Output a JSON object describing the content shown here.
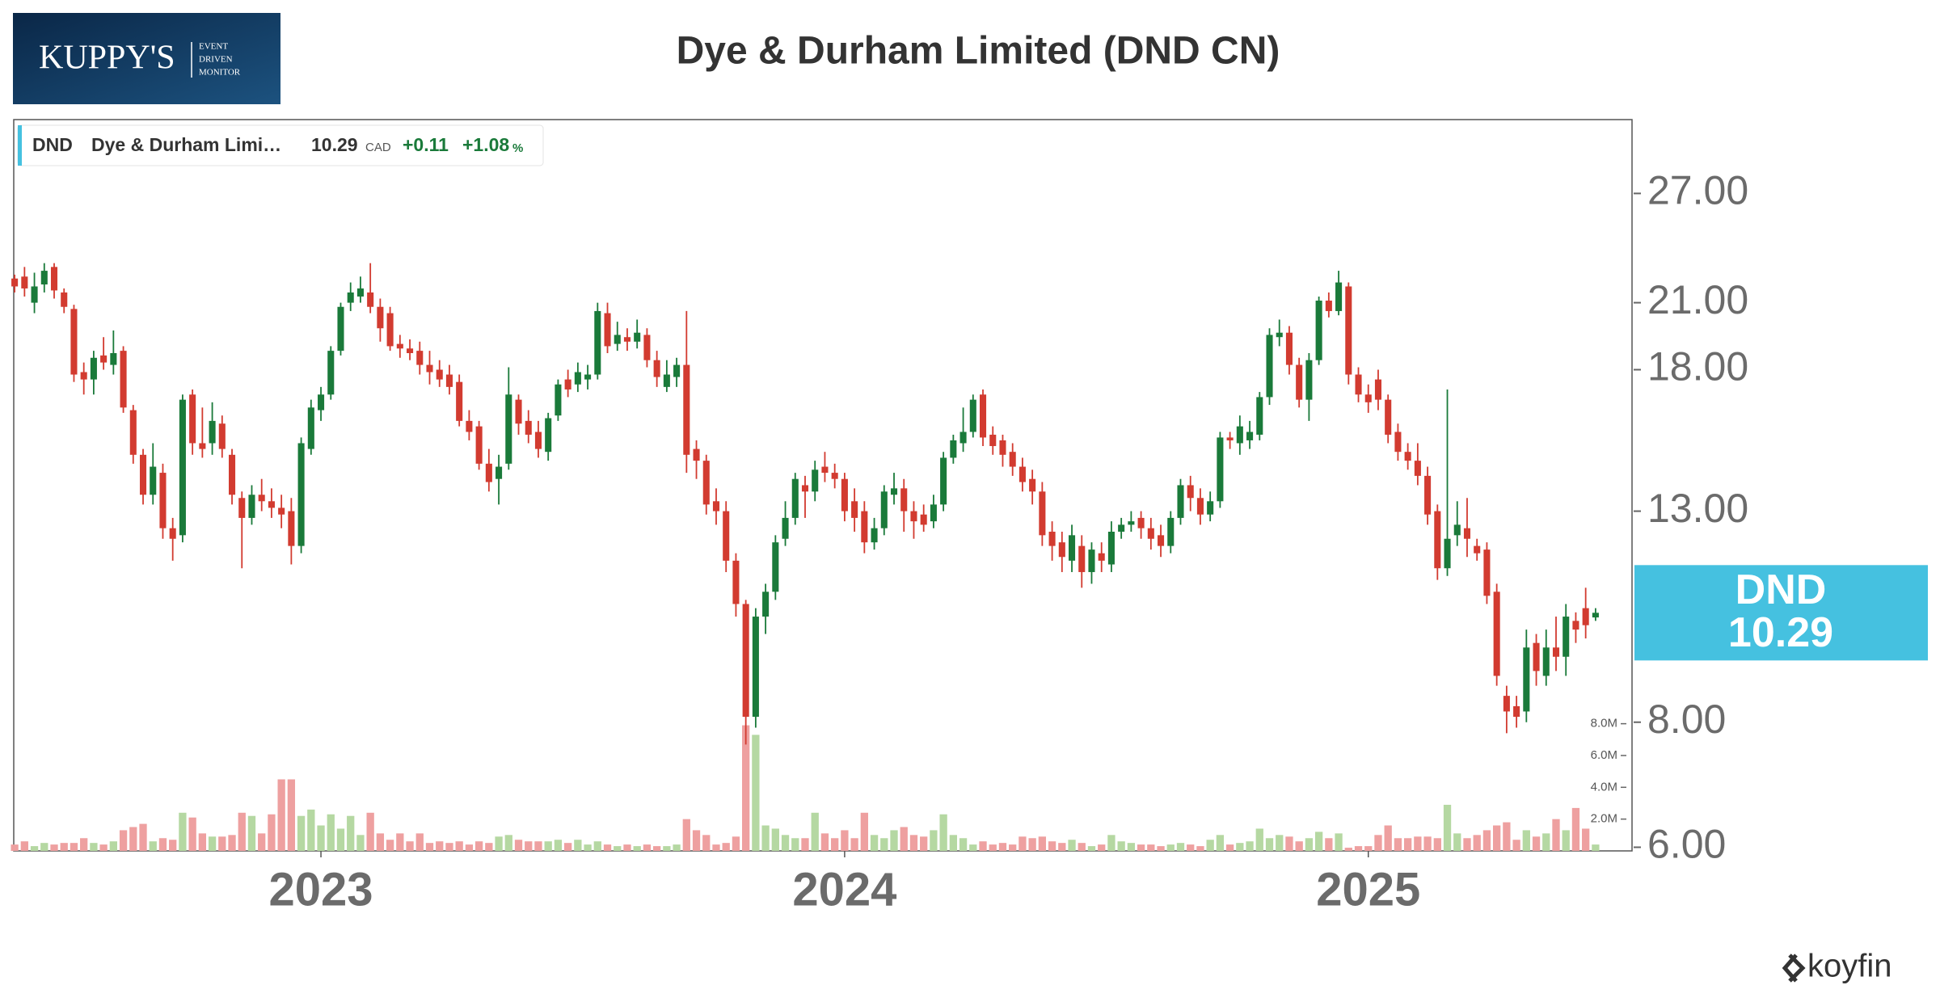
{
  "logo": {
    "name": "KUPPY'S",
    "tagline": [
      "EVENT",
      "DRIVEN",
      "MONITOR"
    ]
  },
  "footer": {
    "brand": "koyfin"
  },
  "chart_data": {
    "type": "candlestick",
    "title": "Dye & Durham Limited (DND CN)",
    "legend": {
      "ticker": "DND",
      "name": "Dye & Durham Limi…",
      "currency": "CAD",
      "change": "+0.11",
      "change_pct": "+1.08",
      "pct_sign": "%"
    },
    "last_price": 10.29,
    "log_scale": true,
    "up_color": "#1a7a3a",
    "down_color": "#d23b30",
    "volume_up_color": "#b5d8a2",
    "volume_down_color": "#eea0a0",
    "tag_color": "#45c1e0",
    "ylim": [
      5.95,
      32
    ],
    "yticks": [
      {
        "value": 6,
        "label": "6.00"
      },
      {
        "value": 8,
        "label": "8.00"
      },
      {
        "value": 13,
        "label": "13.00"
      },
      {
        "value": 18,
        "label": "18.00"
      },
      {
        "value": 21,
        "label": "21.00"
      },
      {
        "value": 27,
        "label": "27.00"
      }
    ],
    "volume_ylim": [
      0,
      46
    ],
    "volume_yticks": [
      {
        "value": 2,
        "label": "2.0M"
      },
      {
        "value": 4,
        "label": "4.0M"
      },
      {
        "value": 6,
        "label": "6.0M"
      },
      {
        "value": 8,
        "label": "8.0M"
      }
    ],
    "categories": [
      null,
      null,
      null,
      null,
      null,
      null,
      null,
      null,
      null,
      null,
      null,
      null,
      null,
      null,
      null,
      null,
      null,
      null,
      null,
      null,
      null,
      null,
      null,
      null,
      null,
      null,
      null,
      null,
      null,
      null,
      null,
      "2023",
      null,
      null,
      null,
      null,
      null,
      null,
      null,
      null,
      null,
      null,
      null,
      null,
      null,
      null,
      null,
      null,
      null,
      null,
      null,
      null,
      null,
      null,
      null,
      null,
      null,
      null,
      null,
      null,
      null,
      null,
      null,
      null,
      null,
      null,
      null,
      null,
      null,
      null,
      null,
      null,
      null,
      null,
      null,
      null,
      null,
      null,
      null,
      null,
      null,
      null,
      null,
      null,
      "2024",
      null,
      null,
      null,
      null,
      null,
      null,
      null,
      null,
      null,
      null,
      null,
      null,
      null,
      null,
      null,
      null,
      null,
      null,
      null,
      null,
      null,
      null,
      null,
      null,
      null,
      null,
      null,
      null,
      null,
      null,
      null,
      null,
      null,
      null,
      null,
      null,
      null,
      null,
      null,
      null,
      null,
      null,
      null,
      null,
      null,
      null,
      null,
      null,
      null,
      null,
      null,
      null,
      "2025",
      null,
      null,
      null,
      null,
      null,
      null,
      null,
      null,
      null,
      null,
      null,
      null,
      null,
      null,
      null,
      null,
      null,
      null,
      null,
      null,
      null,
      null,
      null
    ],
    "open": [
      22.2,
      22.3,
      21.0,
      21.9,
      22.8,
      21.5,
      20.7,
      17.9,
      17.6,
      18.6,
      18.2,
      18.8,
      16.4,
      14.8,
      13.5,
      14.2,
      12.5,
      12.3,
      17.0,
      15.2,
      15.2,
      15.9,
      14.8,
      13.4,
      12.8,
      13.5,
      13.3,
      13.1,
      13.0,
      12.0,
      15.0,
      16.4,
      17.0,
      18.8,
      21.0,
      21.3,
      21.5,
      20.8,
      20.5,
      19.1,
      18.9,
      18.8,
      18.2,
      18.0,
      17.8,
      17.5,
      16.0,
      15.8,
      14.5,
      14.0,
      14.5,
      16.8,
      16.0,
      15.6,
      14.9,
      16.2,
      17.6,
      17.4,
      17.6,
      17.8,
      20.5,
      19.1,
      19.4,
      19.2,
      19.5,
      18.4,
      17.3,
      17.7,
      18.2,
      15.0,
      14.6,
      13.3,
      13.0,
      11.6,
      10.5,
      8.1,
      10.2,
      10.8,
      12.2,
      12.8,
      13.8,
      13.6,
      14.4,
      14.2,
      14.0,
      13.3,
      13.0,
      12.1,
      12.5,
      13.5,
      13.7,
      13.0,
      12.9,
      12.7,
      13.2,
      14.7,
      15.2,
      15.6,
      17.0,
      15.5,
      15.3,
      14.9,
      14.4,
      14.0,
      13.6,
      12.4,
      12.1,
      11.6,
      12.0,
      11.3,
      11.8,
      11.5,
      12.4,
      12.6,
      12.8,
      12.5,
      12.3,
      12.0,
      12.8,
      13.8,
      13.4,
      12.9,
      13.3,
      15.4,
      15.2,
      15.3,
      15.5,
      16.9,
      19.4,
      19.6,
      18.2,
      16.8,
      18.4,
      21.1,
      20.6,
      21.8,
      17.8,
      17.0,
      17.6,
      16.8,
      15.6,
      14.9,
      14.6,
      14.1,
      13.0,
      11.4,
      12.3,
      12.5,
      12.0,
      11.9,
      10.8,
      8.5,
      8.3,
      8.2,
      9.6,
      8.9,
      9.5,
      9.3,
      10.1,
      10.4,
      10.18
    ],
    "high": [
      22.4,
      22.8,
      22.5,
      23.0,
      23.0,
      21.7,
      20.9,
      18.3,
      18.8,
      19.4,
      19.7,
      19.0,
      16.6,
      15.0,
      15.2,
      14.5,
      12.8,
      17.0,
      17.2,
      16.5,
      16.7,
      16.2,
      15.0,
      13.6,
      13.8,
      14.0,
      13.7,
      13.5,
      13.4,
      15.4,
      16.8,
      17.3,
      19.0,
      21.0,
      22.0,
      22.3,
      23.0,
      21.2,
      20.8,
      19.5,
      19.3,
      19.2,
      18.8,
      18.4,
      18.2,
      17.8,
      16.4,
      16.0,
      15.0,
      14.8,
      18.1,
      17.0,
      16.4,
      16.0,
      16.3,
      17.6,
      18.0,
      18.3,
      18.2,
      21.0,
      21.0,
      20.1,
      19.8,
      20.2,
      19.8,
      18.8,
      18.4,
      18.5,
      20.6,
      15.3,
      14.8,
      13.7,
      13.3,
      11.8,
      10.6,
      10.4,
      11.0,
      12.3,
      13.3,
      14.2,
      14.1,
      14.6,
      14.9,
      14.5,
      14.2,
      13.7,
      13.3,
      12.8,
      13.8,
      14.2,
      14.0,
      13.3,
      13.2,
      13.5,
      14.9,
      15.5,
      16.5,
      17.0,
      17.2,
      15.8,
      15.5,
      15.2,
      14.7,
      14.3,
      13.9,
      12.7,
      12.4,
      12.6,
      12.3,
      12.1,
      12.1,
      12.7,
      12.8,
      13.0,
      13.0,
      12.8,
      12.6,
      13.0,
      14.0,
      14.1,
      13.7,
      13.6,
      15.6,
      15.6,
      16.2,
      16.0,
      17.1,
      19.8,
      20.2,
      19.9,
      18.5,
      18.7,
      21.3,
      21.5,
      22.6,
      22.0,
      18.1,
      17.4,
      18.0,
      17.0,
      15.9,
      15.2,
      15.2,
      14.4,
      13.2,
      17.2,
      13.3,
      13.4,
      12.2,
      12.1,
      11.0,
      8.7,
      8.5,
      9.9,
      9.8,
      9.9,
      10.2,
      10.5,
      10.3,
      10.9,
      10.4
    ],
    "low": [
      21.5,
      21.3,
      20.5,
      21.5,
      21.2,
      20.5,
      17.5,
      17.0,
      17.0,
      18.0,
      17.8,
      16.3,
      14.5,
      13.2,
      13.2,
      12.2,
      11.6,
      12.1,
      14.8,
      14.7,
      14.8,
      14.7,
      13.2,
      11.4,
      12.6,
      13.0,
      12.8,
      12.5,
      11.5,
      11.8,
      14.8,
      16.0,
      16.8,
      18.6,
      20.6,
      21.0,
      20.5,
      19.2,
      18.8,
      18.5,
      18.4,
      17.8,
      17.4,
      17.3,
      17.0,
      15.8,
      15.3,
      14.3,
      13.6,
      13.2,
      14.3,
      15.5,
      15.2,
      14.7,
      14.6,
      16.0,
      16.9,
      17.1,
      17.2,
      17.6,
      18.7,
      18.8,
      18.8,
      18.9,
      18.1,
      17.3,
      17.1,
      17.3,
      14.2,
      14.0,
      12.9,
      12.6,
      11.3,
      10.2,
      7.6,
      7.9,
      9.8,
      10.6,
      12.0,
      12.6,
      12.8,
      13.3,
      13.9,
      13.7,
      12.7,
      12.4,
      11.8,
      11.9,
      12.3,
      13.2,
      12.4,
      12.2,
      12.4,
      12.5,
      13.0,
      14.5,
      14.9,
      15.4,
      15.1,
      14.8,
      14.4,
      14.1,
      13.6,
      13.2,
      12.0,
      11.6,
      11.3,
      11.3,
      10.9,
      11.0,
      11.3,
      11.3,
      12.2,
      12.4,
      12.2,
      11.9,
      11.7,
      11.8,
      12.6,
      13.0,
      12.6,
      12.7,
      13.1,
      15.0,
      14.8,
      15.0,
      15.3,
      16.6,
      19.0,
      17.8,
      16.5,
      16.0,
      18.2,
      20.3,
      20.4,
      17.4,
      16.7,
      16.3,
      16.4,
      15.2,
      14.6,
      14.3,
      13.8,
      12.6,
      11.1,
      11.2,
      12.0,
      11.7,
      11.6,
      10.5,
      8.7,
      7.8,
      7.9,
      8.0,
      8.7,
      8.7,
      9.0,
      8.9,
      9.6,
      9.7,
      10.1
    ],
    "close": [
      21.8,
      21.7,
      21.8,
      22.6,
      21.6,
      20.8,
      17.8,
      17.6,
      18.5,
      18.3,
      18.7,
      16.5,
      14.8,
      13.5,
      14.4,
      12.5,
      12.2,
      16.8,
      15.2,
      15.0,
      16.0,
      15.0,
      13.5,
      12.8,
      13.5,
      13.3,
      13.1,
      12.9,
      12.0,
      15.2,
      16.5,
      17.0,
      18.8,
      20.8,
      21.5,
      21.7,
      20.8,
      19.8,
      19.0,
      18.9,
      18.7,
      18.2,
      17.9,
      17.6,
      17.3,
      16.0,
      15.6,
      14.5,
      13.9,
      14.4,
      17.0,
      15.9,
      15.5,
      15.0,
      16.1,
      17.4,
      17.2,
      17.9,
      17.8,
      20.6,
      19.0,
      19.5,
      19.2,
      19.6,
      18.4,
      17.7,
      17.8,
      18.2,
      14.8,
      14.6,
      13.2,
      13.0,
      11.6,
      10.5,
      8.1,
      10.2,
      10.8,
      12.1,
      12.8,
      14.0,
      13.6,
      14.3,
      14.2,
      14.0,
      13.0,
      12.8,
      12.1,
      12.5,
      13.6,
      13.7,
      13.0,
      12.7,
      12.6,
      13.2,
      14.7,
      15.3,
      15.6,
      16.8,
      15.4,
      15.1,
      14.8,
      14.4,
      13.9,
      13.6,
      12.3,
      12.0,
      11.7,
      12.3,
      11.3,
      11.9,
      11.6,
      12.4,
      12.6,
      12.7,
      12.5,
      12.2,
      12.0,
      12.8,
      13.8,
      13.4,
      12.9,
      13.3,
      15.4,
      15.3,
      15.8,
      15.6,
      16.9,
      19.5,
      19.6,
      18.2,
      16.8,
      18.4,
      21.1,
      20.6,
      22.0,
      17.8,
      17.0,
      16.7,
      16.8,
      15.5,
      14.9,
      14.6,
      14.1,
      12.9,
      11.4,
      12.2,
      12.6,
      12.2,
      11.8,
      10.7,
      8.9,
      8.2,
      8.1,
      9.5,
      9.0,
      9.5,
      9.3,
      10.2,
      9.9,
      10.0,
      10.29
    ],
    "volume": [
      0.4,
      0.6,
      0.3,
      0.5,
      0.4,
      0.5,
      0.5,
      0.8,
      0.5,
      0.4,
      0.6,
      1.3,
      1.5,
      1.7,
      0.6,
      0.8,
      0.7,
      2.4,
      2.1,
      1.1,
      0.9,
      0.9,
      1.0,
      2.4,
      2.2,
      1.1,
      2.3,
      4.5,
      4.5,
      2.2,
      2.6,
      1.6,
      2.3,
      1.4,
      2.2,
      1.0,
      2.4,
      1.1,
      0.7,
      1.1,
      0.6,
      1.1,
      0.5,
      0.6,
      0.5,
      0.6,
      0.4,
      0.6,
      0.5,
      0.9,
      1.0,
      0.7,
      0.6,
      0.6,
      0.6,
      0.7,
      0.5,
      0.7,
      0.4,
      0.6,
      0.4,
      0.3,
      0.4,
      0.3,
      0.4,
      0.3,
      0.3,
      0.4,
      2.0,
      1.3,
      1.0,
      0.4,
      0.5,
      0.9,
      7.9,
      7.3,
      1.6,
      1.4,
      1.0,
      0.8,
      0.8,
      2.4,
      1.1,
      0.8,
      1.3,
      0.8,
      2.4,
      1.0,
      0.8,
      1.3,
      1.5,
      1.0,
      0.9,
      1.3,
      2.3,
      1.0,
      0.8,
      0.4,
      0.6,
      0.4,
      0.5,
      0.4,
      0.9,
      0.8,
      0.9,
      0.6,
      0.5,
      0.7,
      0.5,
      0.3,
      0.4,
      1.0,
      0.6,
      0.5,
      0.4,
      0.4,
      0.3,
      0.4,
      0.5,
      0.4,
      0.3,
      0.7,
      1.0,
      0.4,
      0.5,
      0.6,
      1.4,
      0.8,
      1.0,
      0.9,
      0.6,
      0.8,
      1.2,
      0.8,
      1.1,
      0.2,
      0.3,
      0.3,
      1.0,
      1.6,
      0.8,
      0.8,
      0.9,
      0.9,
      0.8,
      2.9,
      1.1,
      0.8,
      1.0,
      1.3,
      1.6,
      1.8,
      0.7,
      1.3,
      0.9,
      1.1,
      2.0,
      1.3,
      2.7,
      1.4,
      0.4
    ]
  }
}
